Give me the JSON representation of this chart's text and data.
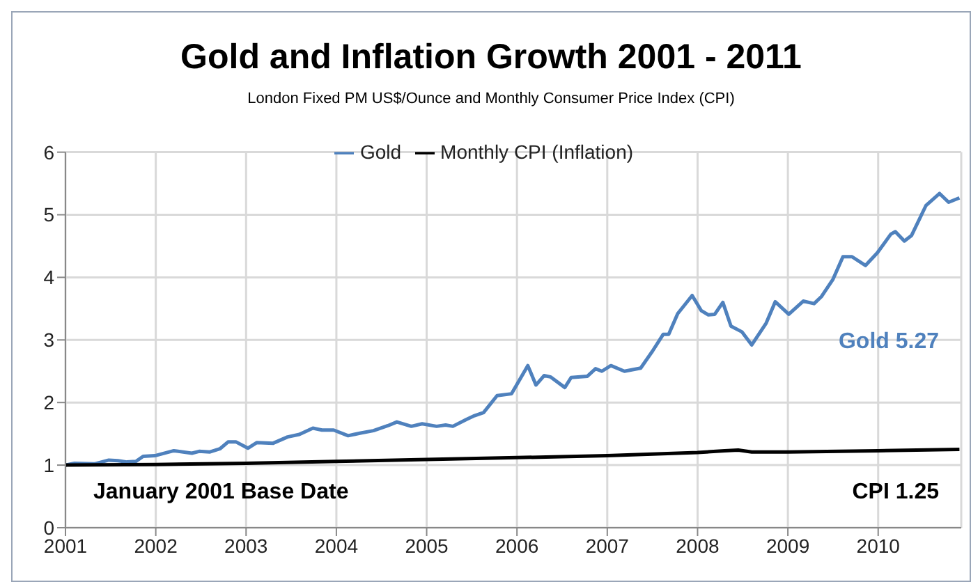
{
  "chart_data": {
    "type": "line",
    "title": "Gold and Inflation Growth 2001 - 2011",
    "subtitle": "London Fixed PM US$/Ounce and Monthly Consumer Price Index (CPI)",
    "xlim": [
      2001,
      2010.92
    ],
    "xticks": [
      2001,
      2002,
      2003,
      2004,
      2005,
      2006,
      2007,
      2008,
      2009,
      2010
    ],
    "ylim": [
      0,
      6
    ],
    "yticks": [
      0,
      1,
      2,
      3,
      4,
      5,
      6
    ],
    "grid": true,
    "legend": "top",
    "marker": "none",
    "line_style": "solid",
    "annotations": [
      "January 2001 Base Date",
      "CPI 1.25",
      "Gold 5.27"
    ],
    "series": [
      {
        "name": "Gold",
        "color": "#4f81bd",
        "x": [
          2001.0,
          2001.1,
          2001.32,
          2001.48,
          2001.58,
          2001.68,
          2001.78,
          2001.86,
          2001.99,
          2002.2,
          2002.4,
          2002.48,
          2002.6,
          2002.71,
          2002.8,
          2002.89,
          2003.02,
          2003.12,
          2003.3,
          2003.46,
          2003.59,
          2003.74,
          2003.84,
          2003.97,
          2004.13,
          2004.26,
          2004.41,
          2004.57,
          2004.67,
          2004.83,
          2004.95,
          2005.11,
          2005.21,
          2005.29,
          2005.44,
          2005.53,
          2005.63,
          2005.78,
          2005.94,
          2006.12,
          2006.21,
          2006.3,
          2006.37,
          2006.53,
          2006.6,
          2006.78,
          2006.87,
          2006.94,
          2007.04,
          2007.19,
          2007.37,
          2007.5,
          2007.62,
          2007.68,
          2007.78,
          2007.94,
          2008.04,
          2008.12,
          2008.19,
          2008.28,
          2008.37,
          2008.49,
          2008.6,
          2008.76,
          2008.86,
          2009.01,
          2009.17,
          2009.29,
          2009.37,
          2009.5,
          2009.61,
          2009.71,
          2009.86,
          2009.99,
          2010.14,
          2010.19,
          2010.29,
          2010.37,
          2010.53,
          2010.68,
          2010.78,
          2010.9
        ],
        "values": [
          1.0,
          1.03,
          1.02,
          1.08,
          1.07,
          1.05,
          1.06,
          1.14,
          1.15,
          1.23,
          1.19,
          1.22,
          1.21,
          1.26,
          1.37,
          1.37,
          1.27,
          1.36,
          1.35,
          1.45,
          1.49,
          1.59,
          1.56,
          1.56,
          1.47,
          1.51,
          1.55,
          1.63,
          1.69,
          1.62,
          1.66,
          1.62,
          1.64,
          1.62,
          1.73,
          1.79,
          1.84,
          2.11,
          2.14,
          2.59,
          2.28,
          2.43,
          2.41,
          2.24,
          2.4,
          2.42,
          2.54,
          2.5,
          2.59,
          2.5,
          2.55,
          2.82,
          3.09,
          3.09,
          3.42,
          3.71,
          3.47,
          3.4,
          3.41,
          3.6,
          3.22,
          3.13,
          2.92,
          3.27,
          3.61,
          3.41,
          3.62,
          3.58,
          3.69,
          3.97,
          4.33,
          4.33,
          4.19,
          4.39,
          4.69,
          4.73,
          4.58,
          4.67,
          5.15,
          5.34,
          5.2,
          5.27
        ]
      },
      {
        "name": "Monthly CPI (Inflation)",
        "color": "#000000",
        "x": [
          2001.0,
          2002.0,
          2003.0,
          2004.0,
          2005.0,
          2006.0,
          2007.0,
          2008.0,
          2008.3,
          2008.45,
          2008.6,
          2009.0,
          2010.0,
          2010.9
        ],
        "values": [
          1.0,
          1.01,
          1.03,
          1.06,
          1.09,
          1.12,
          1.15,
          1.2,
          1.23,
          1.24,
          1.21,
          1.21,
          1.23,
          1.25
        ]
      }
    ]
  }
}
